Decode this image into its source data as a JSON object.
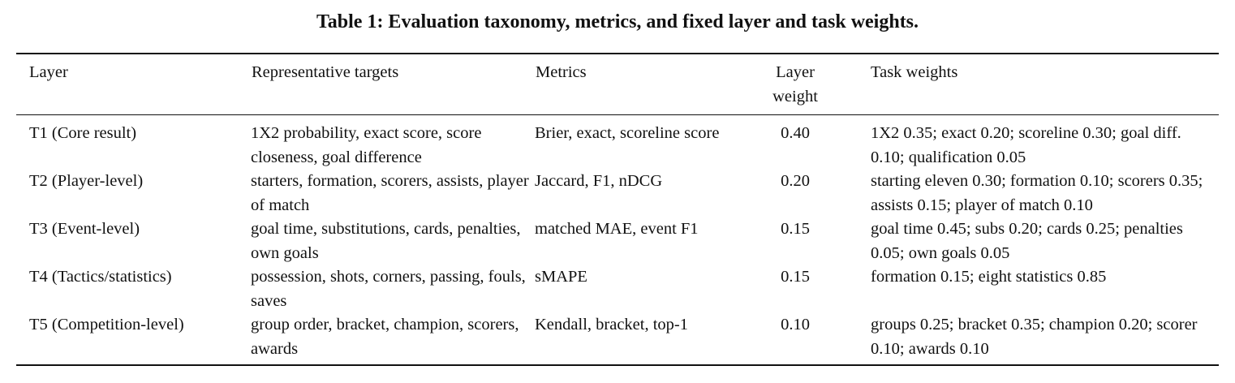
{
  "caption": "Table 1: Evaluation taxonomy, metrics, and fixed layer and task weights.",
  "headers": {
    "layer": "Layer",
    "targets": "Representative targets",
    "metrics": "Metrics",
    "layer_weight_line1": "Layer",
    "layer_weight_line2": "weight",
    "task_weights": "Task weights"
  },
  "rows": [
    {
      "layer": "T1 (Core result)",
      "targets": "1X2 probability, exact score, score closeness, goal difference",
      "metrics": "Brier, exact, scoreline score",
      "layer_weight": "0.40",
      "task_weights": "1X2 0.35; exact 0.20; scoreline 0.30; goal diff. 0.10; qualification 0.05"
    },
    {
      "layer": "T2 (Player-level)",
      "targets": "starters, formation, scorers, assists, player of match",
      "metrics": "Jaccard, F1, nDCG",
      "layer_weight": "0.20",
      "task_weights": "starting eleven 0.30; formation 0.10; scorers 0.35; assists 0.15; player of match 0.10"
    },
    {
      "layer": "T3 (Event-level)",
      "targets": "goal time, substitutions, cards, penalties, own goals",
      "metrics": "matched MAE, event F1",
      "layer_weight": "0.15",
      "task_weights": "goal time 0.45; subs 0.20; cards 0.25; penalties 0.05; own goals 0.05"
    },
    {
      "layer": "T4 (Tactics/statistics)",
      "targets": "possession, shots, corners, passing, fouls, saves",
      "metrics": "sMAPE",
      "layer_weight": "0.15",
      "task_weights": "formation 0.15; eight statistics 0.85"
    },
    {
      "layer": "T5 (Competition-level)",
      "targets": "group order, bracket, champion, scorers, awards",
      "metrics": "Kendall, bracket, top-1",
      "layer_weight": "0.10",
      "task_weights": "groups 0.25; bracket 0.35; champion 0.20; scorer 0.10; awards 0.10"
    }
  ]
}
